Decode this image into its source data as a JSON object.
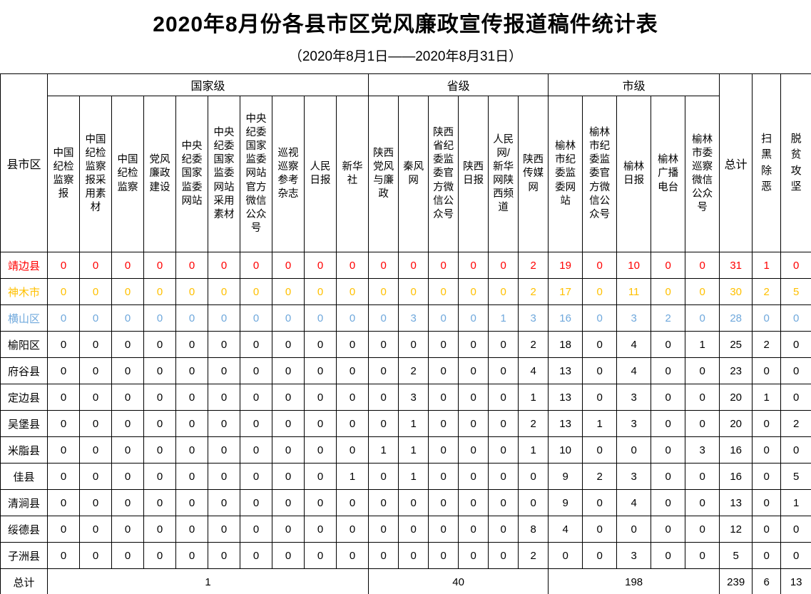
{
  "title": "2020年8月份各县市区党风廉政宣传报道稿件统计表",
  "subtitle": "（2020年8月1日——2020年8月31日）",
  "colors": {
    "border": "#000000",
    "default_text": "#000000",
    "row_jingbian": "#FF0000",
    "row_shenmu": "#FFC000",
    "row_hengshan": "#6FA8DC"
  },
  "chart_data": {
    "type": "table",
    "title": "2020年8月份各县市区党风廉政宣传报道稿件统计表",
    "subtitle": "（2020年8月1日——2020年8月31日）",
    "corner_header": "县市区",
    "groups": [
      {
        "label": "国家级",
        "span": 10
      },
      {
        "label": "省级",
        "span": 6
      },
      {
        "label": "市级",
        "span": 5
      }
    ],
    "media_columns": [
      "中国纪检监察报",
      "中国纪检监察报采用素材",
      "中国纪检监察",
      "党风廉政建设",
      "中央纪委国家监委网站",
      "中央纪委国家监委网站采用素材",
      "中央纪委国家监委网站官方微信公众号",
      "巡视巡察参考杂志",
      "人民日报",
      "新华社",
      "陕西党风与廉政",
      "秦风网",
      "陕西省纪委监委官方微信公众号",
      "陕西日报",
      "人民网/新华网陕西频道",
      "陕西传媒网",
      "榆林市纪委监委网站",
      "榆林市纪委监委官方微信公众号",
      "榆林日报",
      "榆林广播电台",
      "榆林市委巡察微信公众号"
    ],
    "summary_columns": [
      "总计",
      "扫黑除恶",
      "脱贫攻坚"
    ],
    "rows": [
      {
        "name": "靖边县",
        "color": "#FF0000",
        "values": [
          0,
          0,
          0,
          0,
          0,
          0,
          0,
          0,
          0,
          0,
          0,
          0,
          0,
          0,
          0,
          2,
          19,
          0,
          10,
          0,
          0
        ],
        "total": 31,
        "saohei": 1,
        "tuopin": 0
      },
      {
        "name": "神木市",
        "color": "#FFC000",
        "values": [
          0,
          0,
          0,
          0,
          0,
          0,
          0,
          0,
          0,
          0,
          0,
          0,
          0,
          0,
          0,
          2,
          17,
          0,
          11,
          0,
          0
        ],
        "total": 30,
        "saohei": 2,
        "tuopin": 5
      },
      {
        "name": "横山区",
        "color": "#6FA8DC",
        "values": [
          0,
          0,
          0,
          0,
          0,
          0,
          0,
          0,
          0,
          0,
          0,
          3,
          0,
          0,
          1,
          3,
          16,
          0,
          3,
          2,
          0
        ],
        "total": 28,
        "saohei": 0,
        "tuopin": 0
      },
      {
        "name": "榆阳区",
        "color": "#000000",
        "values": [
          0,
          0,
          0,
          0,
          0,
          0,
          0,
          0,
          0,
          0,
          0,
          0,
          0,
          0,
          0,
          2,
          18,
          0,
          4,
          0,
          1
        ],
        "total": 25,
        "saohei": 2,
        "tuopin": 0
      },
      {
        "name": "府谷县",
        "color": "#000000",
        "values": [
          0,
          0,
          0,
          0,
          0,
          0,
          0,
          0,
          0,
          0,
          0,
          2,
          0,
          0,
          0,
          4,
          13,
          0,
          4,
          0,
          0
        ],
        "total": 23,
        "saohei": 0,
        "tuopin": 0
      },
      {
        "name": "定边县",
        "color": "#000000",
        "values": [
          0,
          0,
          0,
          0,
          0,
          0,
          0,
          0,
          0,
          0,
          0,
          3,
          0,
          0,
          0,
          1,
          13,
          0,
          3,
          0,
          0
        ],
        "total": 20,
        "saohei": 1,
        "tuopin": 0
      },
      {
        "name": "吴堡县",
        "color": "#000000",
        "values": [
          0,
          0,
          0,
          0,
          0,
          0,
          0,
          0,
          0,
          0,
          0,
          1,
          0,
          0,
          0,
          2,
          13,
          1,
          3,
          0,
          0
        ],
        "total": 20,
        "saohei": 0,
        "tuopin": 2
      },
      {
        "name": "米脂县",
        "color": "#000000",
        "values": [
          0,
          0,
          0,
          0,
          0,
          0,
          0,
          0,
          0,
          0,
          1,
          1,
          0,
          0,
          0,
          1,
          10,
          0,
          0,
          0,
          3
        ],
        "total": 16,
        "saohei": 0,
        "tuopin": 0
      },
      {
        "name": "佳县",
        "color": "#000000",
        "values": [
          0,
          0,
          0,
          0,
          0,
          0,
          0,
          0,
          0,
          1,
          0,
          1,
          0,
          0,
          0,
          0,
          9,
          2,
          3,
          0,
          0
        ],
        "total": 16,
        "saohei": 0,
        "tuopin": 5
      },
      {
        "name": "清涧县",
        "color": "#000000",
        "values": [
          0,
          0,
          0,
          0,
          0,
          0,
          0,
          0,
          0,
          0,
          0,
          0,
          0,
          0,
          0,
          0,
          9,
          0,
          4,
          0,
          0
        ],
        "total": 13,
        "saohei": 0,
        "tuopin": 1
      },
      {
        "name": "绥德县",
        "color": "#000000",
        "values": [
          0,
          0,
          0,
          0,
          0,
          0,
          0,
          0,
          0,
          0,
          0,
          0,
          0,
          0,
          0,
          8,
          4,
          0,
          0,
          0,
          0
        ],
        "total": 12,
        "saohei": 0,
        "tuopin": 0
      },
      {
        "name": "子洲县",
        "color": "#000000",
        "values": [
          0,
          0,
          0,
          0,
          0,
          0,
          0,
          0,
          0,
          0,
          0,
          0,
          0,
          0,
          0,
          2,
          0,
          0,
          3,
          0,
          0
        ],
        "total": 5,
        "saohei": 0,
        "tuopin": 0
      }
    ],
    "footer_row": {
      "label": "总计",
      "group_totals": [
        1,
        40,
        198
      ],
      "total": 239,
      "saohei": 6,
      "tuopin": 13
    }
  }
}
